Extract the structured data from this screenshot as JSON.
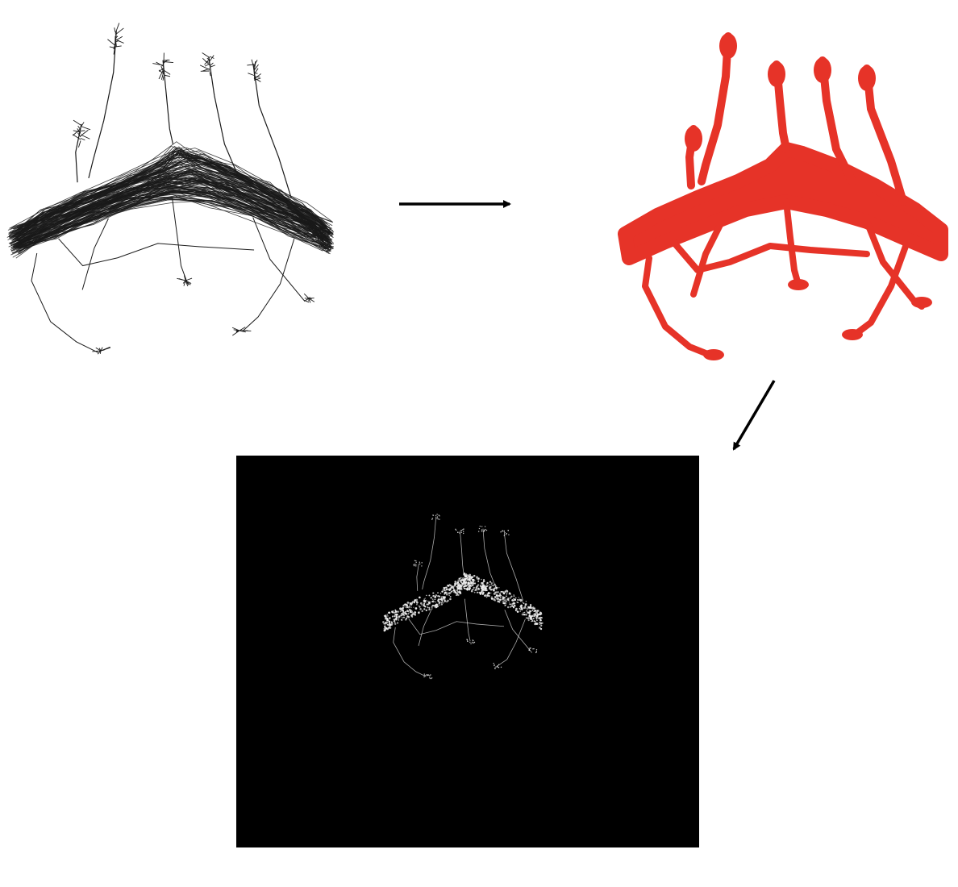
{
  "colors": {
    "background": "#ffffff",
    "skeleton": "#1a1a1a",
    "mask": "#e63328",
    "volume_background": "#000000",
    "volume_signal": "#f2f2f2",
    "arrow": "#000000"
  },
  "panels": [
    {
      "id": "skeleton",
      "style": "thin black neuron tracing on white"
    },
    {
      "id": "mask",
      "style": "solid red segmentation mask"
    },
    {
      "id": "volume",
      "style": "white speckled signal on black"
    }
  ],
  "arrows": [
    {
      "from": "skeleton",
      "to": "mask",
      "direction": "right"
    },
    {
      "from": "mask",
      "to": "volume",
      "direction": "down-left"
    }
  ]
}
